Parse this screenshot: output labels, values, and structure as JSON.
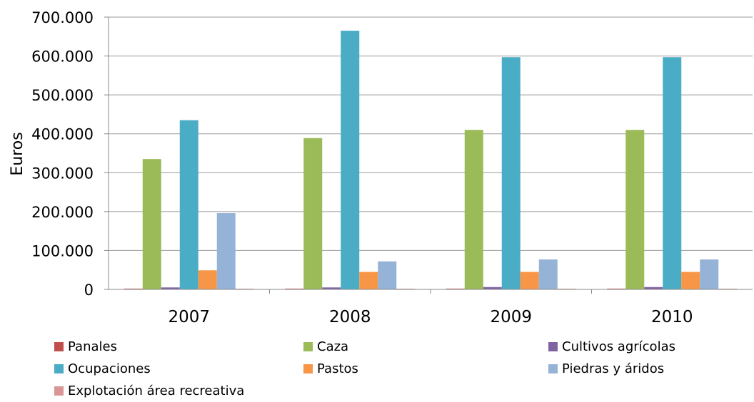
{
  "chart_data": {
    "type": "bar",
    "title": "",
    "xlabel": "",
    "ylabel": "Euros",
    "ylim": [
      0,
      700000
    ],
    "yticks": [
      0,
      100000,
      200000,
      300000,
      400000,
      500000,
      600000,
      700000
    ],
    "ytick_labels": [
      "0",
      "100.000",
      "200.000",
      "300.000",
      "400.000",
      "500.000",
      "600.000",
      "700.000"
    ],
    "grid": true,
    "legend_position": "bottom",
    "categories": [
      "2007",
      "2008",
      "2009",
      "2010"
    ],
    "series": [
      {
        "name": "Panales",
        "color": "#C0504D",
        "values": [
          2000,
          2000,
          2000,
          2000
        ]
      },
      {
        "name": "Caza",
        "color": "#9BBB59",
        "values": [
          335000,
          389000,
          410000,
          410000
        ]
      },
      {
        "name": "Cultivos agrícolas",
        "color": "#8064A2",
        "values": [
          5000,
          5000,
          6000,
          6000
        ]
      },
      {
        "name": "Ocupaciones",
        "color": "#4BACC6",
        "values": [
          435000,
          665000,
          597000,
          597000
        ]
      },
      {
        "name": "Pastos",
        "color": "#F79646",
        "values": [
          49000,
          45000,
          45000,
          45000
        ]
      },
      {
        "name": "Piedras y áridos",
        "color": "#95B3D7",
        "values": [
          196000,
          72000,
          77000,
          77000
        ]
      },
      {
        "name": "Explotación área recreativa",
        "color": "#D99694",
        "values": [
          1500,
          1500,
          1500,
          1500
        ]
      }
    ]
  }
}
